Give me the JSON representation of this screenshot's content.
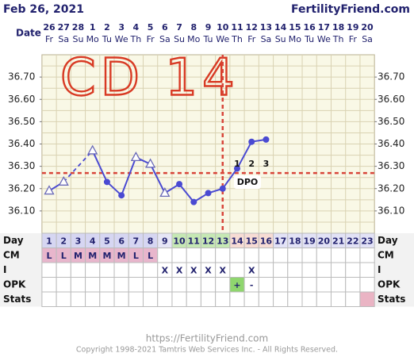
{
  "header": {
    "date": "Feb 26, 2021",
    "site": "FertilityFriend.com"
  },
  "chart_data": {
    "type": "line",
    "x_label": "Date",
    "categories": [
      "26",
      "27",
      "28",
      "1",
      "2",
      "3",
      "4",
      "5",
      "6",
      "7",
      "8",
      "9",
      "10",
      "11",
      "12",
      "13",
      "14",
      "15",
      "16",
      "17",
      "18",
      "19",
      "20"
    ],
    "weekdays": [
      "Fr",
      "Sa",
      "Su",
      "Mo",
      "Tu",
      "We",
      "Th",
      "Fr",
      "Sa",
      "Su",
      "Mo",
      "Tu",
      "We",
      "Th",
      "Fr",
      "Sa",
      "Su",
      "Mo",
      "Tu",
      "We",
      "Th",
      "Fr",
      "Sa"
    ],
    "values": [
      36.19,
      36.23,
      null,
      36.37,
      36.23,
      36.17,
      36.34,
      36.31,
      36.18,
      36.22,
      36.14,
      36.18,
      36.2,
      36.29,
      36.41,
      36.42,
      null,
      null,
      null,
      null,
      null,
      null,
      null
    ],
    "markers": [
      "open-triangle",
      "open-triangle",
      null,
      "open-triangle",
      "circle",
      "circle",
      "open-triangle",
      "open-triangle",
      "open-triangle",
      "circle",
      "circle",
      "circle",
      "circle",
      "circle",
      "circle",
      "circle",
      null,
      null,
      null,
      null,
      null,
      null,
      null
    ],
    "color": "#4a4ad2",
    "ylim": [
      36.0,
      36.8
    ],
    "yticks": [
      {
        "value": 36.1,
        "label": "36.10"
      },
      {
        "value": 36.2,
        "label": "36.20"
      },
      {
        "value": 36.3,
        "label": "36.30"
      },
      {
        "value": 36.4,
        "label": "36.40"
      },
      {
        "value": 36.5,
        "label": "36.50"
      },
      {
        "value": 36.6,
        "label": "36.60"
      },
      {
        "value": 36.7,
        "label": "36.70"
      }
    ],
    "ygrid": [
      36.05,
      36.1,
      36.15,
      36.2,
      36.25,
      36.3,
      36.35,
      36.4,
      36.45,
      36.5,
      36.55,
      36.6,
      36.65,
      36.7,
      36.75
    ],
    "coverline": 36.27,
    "ovulation_day": 13,
    "marker_color": "#d8453a",
    "dpo": [
      1,
      2,
      3
    ],
    "dpo_label": "DPO",
    "annotation": "CD 14"
  },
  "table": {
    "rows": [
      {
        "label": "Day",
        "cells": [
          1,
          2,
          3,
          4,
          5,
          6,
          7,
          8,
          9,
          10,
          11,
          12,
          13,
          14,
          15,
          16,
          17,
          18,
          19,
          20,
          21,
          22,
          23
        ],
        "colors": [
          "#d6d6f2",
          "#d6d6f2",
          "#d6d6f2",
          "#d6d6f2",
          "#d6d6f2",
          "#d6d6f2",
          "#d6d6f2",
          "#d6d6f2",
          "#e6e6f6",
          "#c6e8b4",
          "#c6e8b4",
          "#c6e8b4",
          "#c6e8b4",
          "#f7dcd4",
          "#f7dcd4",
          "#f7dcd4",
          "#e2e2f6",
          "#e2e2f6",
          "#e2e2f6",
          "#e2e2f6",
          "#e2e2f6",
          "#e2e2f6",
          "#e2e2f6"
        ]
      },
      {
        "label": "CM",
        "cells": [
          "L",
          "L",
          "M",
          "M",
          "M",
          "M",
          "L",
          "L",
          null,
          null,
          null,
          null,
          null,
          null,
          null,
          null,
          null,
          null,
          null,
          null,
          null,
          null,
          null
        ],
        "colors": [
          "#e8b6cc",
          "#e8b6cc",
          "#e8b6cc",
          "#e8b6cc",
          "#e8b6cc",
          "#e8b6cc",
          "#e8b6cc",
          "#e8b6cc",
          null,
          null,
          null,
          null,
          null,
          null,
          null,
          null,
          null,
          null,
          null,
          null,
          null,
          null,
          null
        ]
      },
      {
        "label": "I",
        "cells": [
          null,
          null,
          null,
          null,
          null,
          null,
          null,
          null,
          "X",
          "X",
          "X",
          "X",
          "X",
          null,
          "X",
          null,
          null,
          null,
          null,
          null,
          null,
          null,
          null
        ],
        "colors": [
          null,
          null,
          null,
          null,
          null,
          null,
          null,
          null,
          null,
          null,
          null,
          null,
          null,
          null,
          null,
          null,
          null,
          null,
          null,
          null,
          null,
          null,
          null
        ]
      },
      {
        "label": "OPK",
        "cells": [
          null,
          null,
          null,
          null,
          null,
          null,
          null,
          null,
          null,
          null,
          null,
          null,
          null,
          "+",
          "-",
          null,
          null,
          null,
          null,
          null,
          null,
          null,
          null
        ],
        "colors": [
          null,
          null,
          null,
          null,
          null,
          null,
          null,
          null,
          null,
          null,
          null,
          null,
          null,
          "#8fd66e",
          null,
          null,
          null,
          null,
          null,
          null,
          null,
          null,
          null
        ]
      },
      {
        "label": "Stats",
        "cells": [
          null,
          null,
          null,
          null,
          null,
          null,
          null,
          null,
          null,
          null,
          null,
          null,
          null,
          null,
          null,
          null,
          null,
          null,
          null,
          null,
          null,
          null,
          null
        ],
        "colors": [
          null,
          null,
          null,
          null,
          null,
          null,
          null,
          null,
          null,
          null,
          null,
          null,
          null,
          null,
          null,
          null,
          null,
          null,
          null,
          null,
          null,
          null,
          "#eab4c4"
        ]
      }
    ]
  },
  "footer": {
    "url": "https://FertilityFriend.com",
    "copyright": "Copyright 1998-2021 Tamtris Web Services Inc. - All Rights Reserved."
  }
}
